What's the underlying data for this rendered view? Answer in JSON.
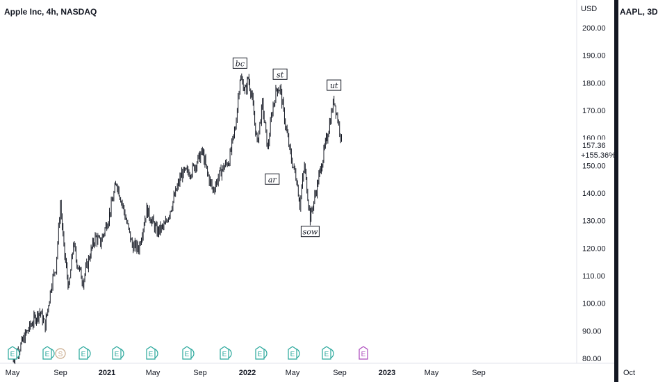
{
  "header": {
    "title": "Apple Inc, 4h, NASDAQ",
    "secondary_title": "AAPL, 3D"
  },
  "y_axis": {
    "currency": "USD",
    "ticks": [
      "200.00",
      "190.00",
      "180.00",
      "170.00",
      "160.00",
      "150.00",
      "140.00",
      "130.00",
      "120.00",
      "110.00",
      "100.00",
      "90.00",
      "80.00"
    ]
  },
  "last_price": {
    "value": "157.36",
    "change": "+155.36%"
  },
  "x_axis": {
    "ticks": [
      {
        "label": "May",
        "bold": false
      },
      {
        "label": "Sep",
        "bold": false
      },
      {
        "label": "2021",
        "bold": true
      },
      {
        "label": "May",
        "bold": false
      },
      {
        "label": "Sep",
        "bold": false
      },
      {
        "label": "2022",
        "bold": true
      },
      {
        "label": "May",
        "bold": false
      },
      {
        "label": "Sep",
        "bold": false
      },
      {
        "label": "2023",
        "bold": true
      },
      {
        "label": "May",
        "bold": false
      },
      {
        "label": "Sep",
        "bold": false
      }
    ],
    "secondary_tick": "Oct"
  },
  "annotations": [
    "bc",
    "st",
    "ar",
    "sow",
    "ut"
  ],
  "events": [
    {
      "type": "E",
      "label": "E"
    },
    {
      "type": "E",
      "label": "E"
    },
    {
      "type": "S",
      "label": "S"
    },
    {
      "type": "E",
      "label": "E"
    },
    {
      "type": "E",
      "label": "E"
    },
    {
      "type": "E",
      "label": "E"
    },
    {
      "type": "E",
      "label": "E"
    },
    {
      "type": "E",
      "label": "E"
    },
    {
      "type": "E",
      "label": "E"
    },
    {
      "type": "E",
      "label": "E"
    },
    {
      "type": "E",
      "label": "E"
    },
    {
      "type": "E-future",
      "label": "E"
    }
  ],
  "colors": {
    "candle": "#131722",
    "earnings": "#26a69a",
    "split": "#c8a98a",
    "future_earnings": "#ab47bc",
    "background": "#ffffff"
  },
  "chart_data": {
    "type": "line",
    "title": "Apple Inc, 4h, NASDAQ",
    "series": [
      {
        "name": "",
        "x": [
          "2020-05-01",
          "2020-05-20",
          "2020-06-05",
          "2020-06-25",
          "2020-07-10",
          "2020-07-24",
          "2020-08-10",
          "2020-08-20",
          "2020-09-01",
          "2020-09-10",
          "2020-09-23",
          "2020-10-05",
          "2020-10-12",
          "2020-10-30",
          "2020-11-16",
          "2020-12-01",
          "2020-12-15",
          "2021-01-05",
          "2021-01-26",
          "2021-02-10",
          "2021-03-08",
          "2021-03-25",
          "2021-04-15",
          "2021-05-12",
          "2021-06-01",
          "2021-06-20",
          "2021-07-15",
          "2021-08-10",
          "2021-09-07",
          "2021-09-20",
          "2021-10-04",
          "2021-10-25",
          "2021-11-15",
          "2021-12-01",
          "2021-12-13",
          "2021-12-28",
          "2022-01-03",
          "2022-01-12",
          "2022-01-27",
          "2022-02-10",
          "2022-02-24",
          "2022-03-08",
          "2022-03-20",
          "2022-03-29",
          "2022-04-12",
          "2022-04-28",
          "2022-05-12",
          "2022-05-20",
          "2022-06-01",
          "2022-06-16",
          "2022-06-30",
          "2022-07-15",
          "2022-08-01",
          "2022-08-17",
          "2022-08-29",
          "2022-09-08"
        ],
        "y": [
          80,
          84,
          89,
          94,
          97,
          92,
          108,
          113,
          136,
          120,
          105,
          122,
          116,
          108,
          117,
          124,
          122,
          131,
          144,
          136,
          121,
          120,
          134,
          126,
          128,
          136,
          147,
          148,
          155,
          147,
          141,
          148,
          152,
          164,
          182,
          177,
          182,
          176,
          158,
          172,
          156,
          170,
          178,
          178,
          165,
          152,
          145,
          136,
          150,
          131,
          140,
          150,
          162,
          174,
          165,
          157.36
        ]
      }
    ],
    "xlabel": "",
    "ylabel": "USD",
    "ylim": [
      78,
      204
    ],
    "annotations": [
      {
        "text": "bc",
        "x": "2021-12-13",
        "y": 182
      },
      {
        "text": "st",
        "x": "2022-03-29",
        "y": 178
      },
      {
        "text": "ar",
        "x": "2022-03-08",
        "y": 150
      },
      {
        "text": "sow",
        "x": "2022-06-16",
        "y": 131
      },
      {
        "text": "ut",
        "x": "2022-08-17",
        "y": 174
      }
    ],
    "last_value": 157.36,
    "grid": false
  }
}
